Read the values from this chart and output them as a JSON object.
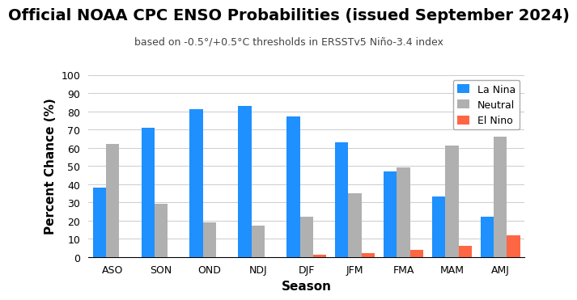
{
  "title": "Official NOAA CPC ENSO Probabilities (issued September 2024)",
  "subtitle": "based on -0.5°/+0.5°C thresholds in ERSSTv5 Niño-3.4 index",
  "xlabel": "Season",
  "ylabel": "Percent Chance (%)",
  "seasons": [
    "ASO",
    "SON",
    "OND",
    "NDJ",
    "DJF",
    "JFM",
    "FMA",
    "MAM",
    "AMJ"
  ],
  "la_nina": [
    38,
    71,
    81,
    83,
    77,
    63,
    47,
    33,
    22
  ],
  "neutral": [
    62,
    29,
    19,
    17,
    22,
    35,
    49,
    61,
    66
  ],
  "el_nino": [
    0,
    0,
    0,
    0,
    1,
    2,
    4,
    6,
    12
  ],
  "la_nina_color": "#1e90ff",
  "neutral_color": "#b0b0b0",
  "el_nino_color": "#ff6644",
  "ylim": [
    0,
    100
  ],
  "yticks": [
    0,
    10,
    20,
    30,
    40,
    50,
    60,
    70,
    80,
    90,
    100
  ],
  "legend_labels": [
    "La Nina",
    "Neutral",
    "El Nino"
  ],
  "title_fontsize": 14,
  "subtitle_fontsize": 9,
  "axis_label_fontsize": 11,
  "tick_fontsize": 9,
  "legend_fontsize": 9,
  "background_color": "#ffffff",
  "grid_color": "#cccccc"
}
